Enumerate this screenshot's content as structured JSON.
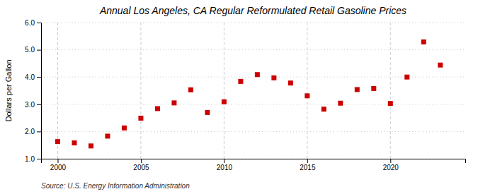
{
  "chart_data": {
    "type": "scatter",
    "title": "Annual Los Angeles, CA Regular Reformulated Retail Gasoline Prices",
    "ylabel": "Dollars per Gallon",
    "source": "Source: U.S. Energy Information Administration",
    "x": [
      2000,
      2001,
      2002,
      2003,
      2004,
      2005,
      2006,
      2007,
      2008,
      2009,
      2010,
      2011,
      2012,
      2013,
      2014,
      2015,
      2016,
      2017,
      2018,
      2019,
      2020,
      2021,
      2022,
      2023
    ],
    "values": [
      1.63,
      1.58,
      1.47,
      1.83,
      2.13,
      2.49,
      2.84,
      3.05,
      3.53,
      2.7,
      3.09,
      3.84,
      4.09,
      3.97,
      3.78,
      3.31,
      2.82,
      3.04,
      3.54,
      3.58,
      3.03,
      4.0,
      5.29,
      4.44
    ],
    "color": "#cc0000",
    "marker": "square",
    "xlim": [
      1999,
      2024.5
    ],
    "xticks": [
      2000,
      2005,
      2010,
      2015,
      2020
    ],
    "ylim": [
      1.0,
      6.0
    ],
    "yticks": [
      {
        "value": 1.0,
        "label": "1.0"
      },
      {
        "value": 2.0,
        "label": "2.0"
      },
      {
        "value": 3.0,
        "label": "3.0"
      },
      {
        "value": 4.0,
        "label": "4.0"
      },
      {
        "value": 5.0,
        "label": "5.0"
      },
      {
        "value": 6.0,
        "label": "6.0"
      }
    ],
    "grid": true
  }
}
